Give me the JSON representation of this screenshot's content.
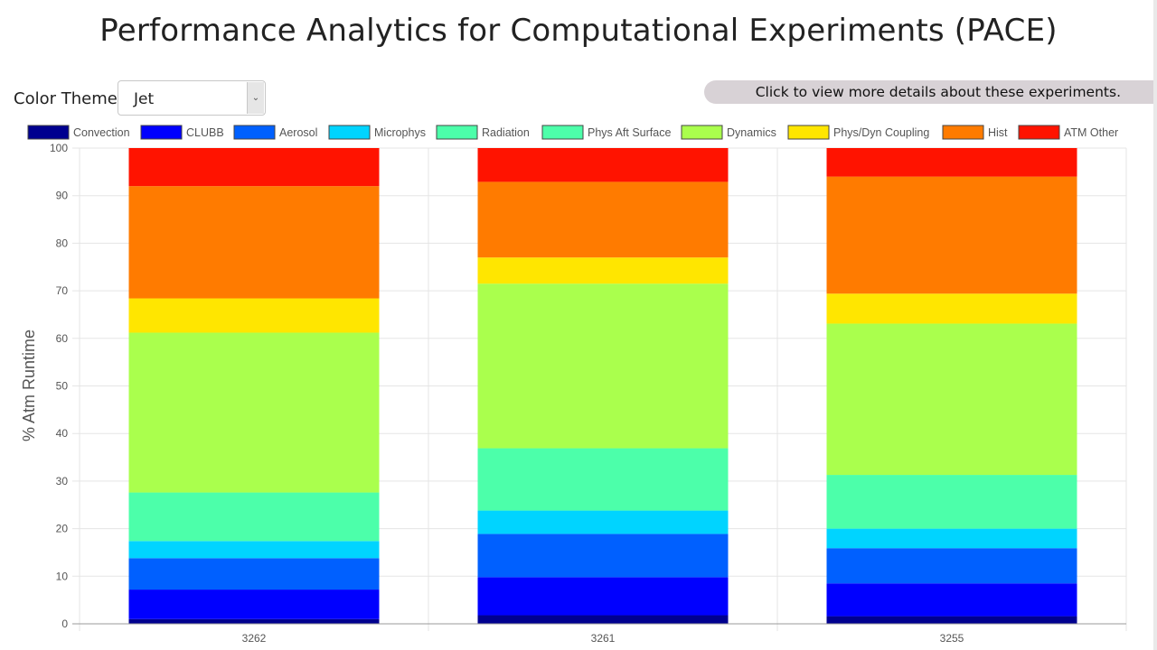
{
  "header": {
    "title": "Performance Analytics for Computational Experiments (PACE)"
  },
  "controls": {
    "theme_label": "Color Theme:",
    "theme_value": "Jet",
    "details_button": "Click to view more details about these experiments."
  },
  "chart_data": {
    "type": "bar",
    "stacked": true,
    "title": "",
    "xlabel": "",
    "ylabel": "% Atm Runtime",
    "ylim": [
      0,
      100
    ],
    "yticks": [
      0,
      10,
      20,
      30,
      40,
      50,
      60,
      70,
      80,
      90,
      100
    ],
    "grid": true,
    "legend_position": "top",
    "categories": [
      "3262",
      "3261",
      "3255"
    ],
    "series": [
      {
        "name": "Convection",
        "color": "#00008f",
        "values": [
          1.0,
          1.8,
          1.6
        ]
      },
      {
        "name": "CLUBB",
        "color": "#0000ff",
        "values": [
          6.2,
          8.0,
          6.9
        ]
      },
      {
        "name": "Aerosol",
        "color": "#0060ff",
        "values": [
          6.6,
          9.1,
          7.4
        ]
      },
      {
        "name": "Microphys",
        "color": "#00d4ff",
        "values": [
          3.6,
          4.9,
          4.1
        ]
      },
      {
        "name": "Radiation",
        "color": "#4cffaa",
        "values": [
          10.2,
          13.1,
          11.3
        ]
      },
      {
        "name": "Phys Aft Surface",
        "color": "#4dffaa",
        "values": [
          0.0,
          0.0,
          0.0
        ]
      },
      {
        "name": "Dynamics",
        "color": "#aaff4d",
        "values": [
          33.6,
          34.6,
          31.8
        ]
      },
      {
        "name": "Phys/Dyn Coupling",
        "color": "#ffe600",
        "values": [
          7.2,
          5.5,
          6.3
        ]
      },
      {
        "name": "Hist",
        "color": "#ff7b00",
        "values": [
          23.6,
          15.9,
          24.6
        ]
      },
      {
        "name": "ATM Other",
        "color": "#ff1300",
        "values": [
          8.0,
          7.1,
          6.0
        ]
      }
    ]
  }
}
